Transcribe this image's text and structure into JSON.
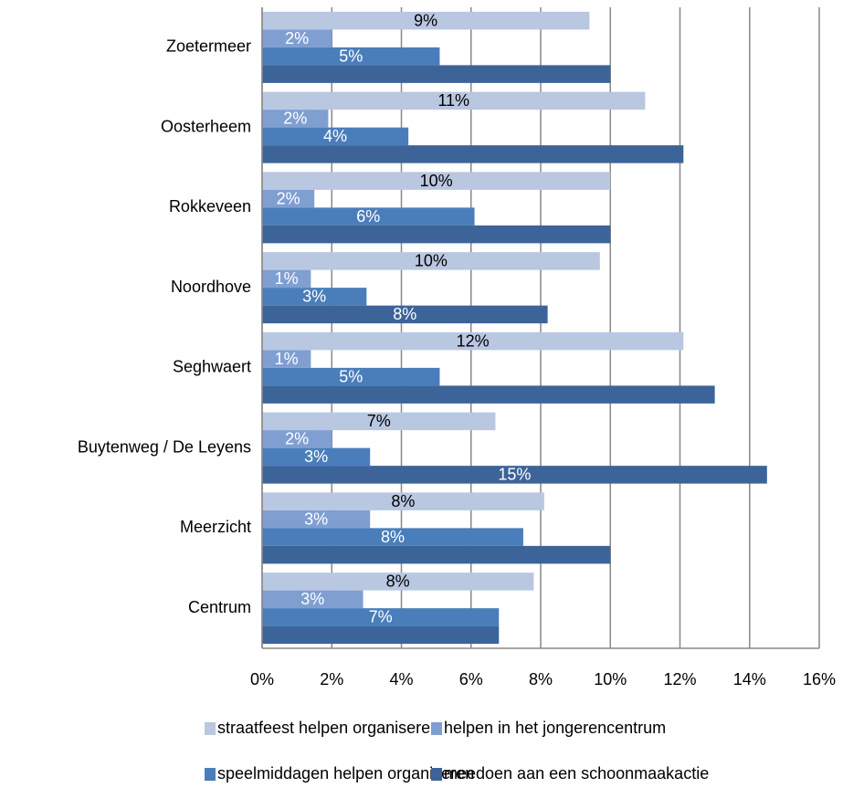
{
  "chart_data": {
    "type": "bar",
    "orientation": "horizontal",
    "categories": [
      "Zoetermeer",
      "Oosterheem",
      "Rokkeveen",
      "Noordhove",
      "Seghwaert",
      "Buytenweg / De Leyens",
      "Meerzicht",
      "Centrum"
    ],
    "series": [
      {
        "name": "straatfeest helpen organiseren",
        "color": "#b9c7e1",
        "values": [
          9.4,
          11.0,
          10.0,
          9.7,
          12.1,
          6.7,
          8.1,
          7.8
        ],
        "value_labels": [
          "9%",
          "11%",
          "10%",
          "10%",
          "12%",
          "7%",
          "8%",
          "8%"
        ]
      },
      {
        "name": "helpen in het jongerencentrum",
        "color": "#7f9fd1",
        "values": [
          2.0,
          1.9,
          1.5,
          1.4,
          1.4,
          2.0,
          3.1,
          2.9
        ],
        "value_labels": [
          "2%",
          "2%",
          "2%",
          "1%",
          "1%",
          "2%",
          "3%",
          "3%"
        ]
      },
      {
        "name": "speelmiddagen helpen organiseren",
        "color": "#4a7ebb",
        "values": [
          5.1,
          4.2,
          6.1,
          3.0,
          5.1,
          3.1,
          7.5,
          6.8
        ],
        "value_labels": [
          "5%",
          "4%",
          "6%",
          "3%",
          "5%",
          "3%",
          "8%",
          "7%"
        ]
      },
      {
        "name": "meedoen aan een schoonmaakactie",
        "color": "#3d6499",
        "values": [
          10.0,
          12.1,
          10.0,
          8.2,
          13.0,
          14.5,
          10.0,
          6.8
        ],
        "value_labels": [
          null,
          null,
          null,
          "8%",
          null,
          "15%",
          null,
          null
        ]
      }
    ],
    "xlim": [
      0,
      16
    ],
    "xticks": [
      {
        "value": 0,
        "label": "0%"
      },
      {
        "value": 2,
        "label": "2%"
      },
      {
        "value": 4,
        "label": "4%"
      },
      {
        "value": 6,
        "label": "6%"
      },
      {
        "value": 8,
        "label": "8%"
      },
      {
        "value": 10,
        "label": "10%"
      },
      {
        "value": 12,
        "label": "12%"
      },
      {
        "value": 14,
        "label": "14%"
      },
      {
        "value": 16,
        "label": "16%"
      }
    ],
    "grid": true,
    "legend": "bottom"
  }
}
